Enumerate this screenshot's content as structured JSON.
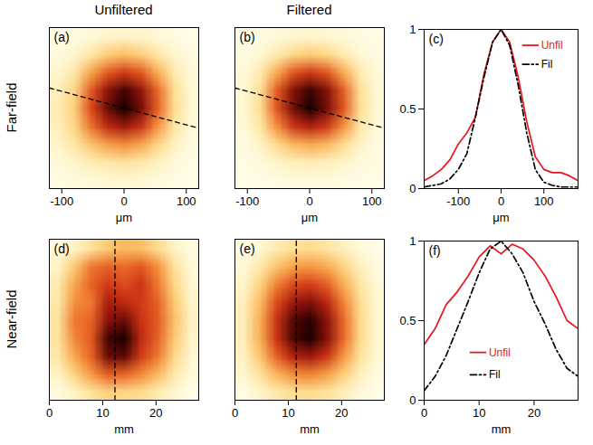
{
  "column_titles": [
    "Unfiltered",
    "Filtered"
  ],
  "row_titles": [
    "Far-field",
    "Near-field"
  ],
  "chart_data": [
    {
      "type": "heatmap",
      "panel_label": "(a)",
      "xlabel": "μm",
      "xlim": [
        -120,
        120
      ],
      "xticks": [
        -100,
        0,
        100
      ],
      "ylim": [
        -120,
        120
      ],
      "tick_labels": "x",
      "cells": [
        [
          0.06,
          0.07,
          0.09,
          0.12,
          0.13,
          0.12,
          0.09,
          0.07,
          0.05
        ],
        [
          0.08,
          0.12,
          0.22,
          0.33,
          0.38,
          0.33,
          0.22,
          0.12,
          0.07
        ],
        [
          0.12,
          0.22,
          0.45,
          0.62,
          0.7,
          0.62,
          0.42,
          0.2,
          0.09
        ],
        [
          0.16,
          0.3,
          0.62,
          0.85,
          0.95,
          0.84,
          0.58,
          0.26,
          0.1
        ],
        [
          0.18,
          0.33,
          0.66,
          0.9,
          1.0,
          0.88,
          0.6,
          0.27,
          0.1
        ],
        [
          0.17,
          0.3,
          0.56,
          0.75,
          0.82,
          0.72,
          0.48,
          0.22,
          0.09
        ],
        [
          0.13,
          0.22,
          0.36,
          0.46,
          0.5,
          0.44,
          0.3,
          0.15,
          0.07
        ],
        [
          0.09,
          0.13,
          0.18,
          0.22,
          0.24,
          0.21,
          0.15,
          0.09,
          0.06
        ],
        [
          0.06,
          0.08,
          0.09,
          0.1,
          0.11,
          0.1,
          0.08,
          0.06,
          0.05
        ]
      ],
      "profile_line": {
        "x": [
          -120,
          120
        ],
        "y": [
          30,
          -30
        ],
        "line_style": "dashed",
        "color": "#000000"
      }
    },
    {
      "type": "heatmap",
      "panel_label": "(b)",
      "xlabel": "μm",
      "xlim": [
        -120,
        120
      ],
      "xticks": [
        -100,
        0,
        100
      ],
      "ylim": [
        -120,
        120
      ],
      "tick_labels": "x",
      "cells": [
        [
          0.04,
          0.05,
          0.07,
          0.09,
          0.1,
          0.09,
          0.07,
          0.05,
          0.04
        ],
        [
          0.05,
          0.09,
          0.18,
          0.28,
          0.32,
          0.28,
          0.18,
          0.09,
          0.05
        ],
        [
          0.07,
          0.18,
          0.42,
          0.62,
          0.7,
          0.62,
          0.42,
          0.18,
          0.07
        ],
        [
          0.08,
          0.24,
          0.6,
          0.86,
          0.96,
          0.86,
          0.6,
          0.24,
          0.08
        ],
        [
          0.08,
          0.25,
          0.62,
          0.88,
          1.0,
          0.88,
          0.62,
          0.25,
          0.08
        ],
        [
          0.07,
          0.2,
          0.48,
          0.7,
          0.78,
          0.7,
          0.48,
          0.2,
          0.07
        ],
        [
          0.05,
          0.12,
          0.26,
          0.38,
          0.42,
          0.38,
          0.26,
          0.12,
          0.05
        ],
        [
          0.04,
          0.07,
          0.11,
          0.15,
          0.17,
          0.15,
          0.11,
          0.07,
          0.04
        ],
        [
          0.03,
          0.04,
          0.05,
          0.06,
          0.06,
          0.06,
          0.05,
          0.04,
          0.03
        ]
      ],
      "profile_line": {
        "x": [
          -120,
          120
        ],
        "y": [
          30,
          -30
        ],
        "line_style": "dashed",
        "color": "#000000"
      }
    },
    {
      "type": "line",
      "panel_label": "(c)",
      "xlabel": "μm",
      "xlim": [
        -180,
        180
      ],
      "xticks": [
        -100,
        0,
        100
      ],
      "ylim": [
        0,
        1
      ],
      "yticks": [
        0,
        0.5,
        1
      ],
      "legend": "upper right",
      "x": [
        -180,
        -160,
        -140,
        -120,
        -100,
        -80,
        -60,
        -40,
        -20,
        0,
        20,
        40,
        60,
        80,
        100,
        120,
        140,
        160,
        180
      ],
      "series": [
        {
          "name": "Unfil",
          "color": "#e8141c",
          "line_style": "solid",
          "values": [
            0.05,
            0.08,
            0.12,
            0.18,
            0.28,
            0.35,
            0.45,
            0.72,
            0.92,
            1.0,
            0.92,
            0.7,
            0.42,
            0.2,
            0.12,
            0.1,
            0.1,
            0.08,
            0.05
          ]
        },
        {
          "name": "Fil",
          "color": "#000000",
          "line_style": "dashdot",
          "values": [
            0.01,
            0.02,
            0.03,
            0.06,
            0.12,
            0.22,
            0.45,
            0.7,
            0.92,
            1.0,
            0.9,
            0.65,
            0.35,
            0.12,
            0.04,
            0.02,
            0.01,
            0.01,
            0.01
          ]
        }
      ]
    },
    {
      "type": "heatmap",
      "panel_label": "(d)",
      "xlabel": "mm",
      "xlim": [
        0,
        28
      ],
      "xticks": [
        0,
        10,
        20
      ],
      "ylim": [
        0,
        28
      ],
      "tick_labels": "x",
      "cells": [
        [
          0.1,
          0.15,
          0.25,
          0.35,
          0.4,
          0.38,
          0.28,
          0.15,
          0.08
        ],
        [
          0.15,
          0.35,
          0.55,
          0.6,
          0.58,
          0.62,
          0.5,
          0.25,
          0.1
        ],
        [
          0.2,
          0.45,
          0.6,
          0.7,
          0.65,
          0.72,
          0.55,
          0.3,
          0.12
        ],
        [
          0.22,
          0.5,
          0.55,
          0.8,
          0.75,
          0.7,
          0.6,
          0.35,
          0.14
        ],
        [
          0.25,
          0.55,
          0.6,
          0.85,
          0.9,
          0.72,
          0.62,
          0.38,
          0.15
        ],
        [
          0.25,
          0.52,
          0.62,
          0.95,
          1.0,
          0.75,
          0.6,
          0.35,
          0.14
        ],
        [
          0.22,
          0.45,
          0.6,
          0.9,
          0.92,
          0.7,
          0.55,
          0.3,
          0.12
        ],
        [
          0.15,
          0.32,
          0.48,
          0.62,
          0.6,
          0.52,
          0.4,
          0.22,
          0.1
        ],
        [
          0.08,
          0.15,
          0.25,
          0.32,
          0.3,
          0.28,
          0.2,
          0.12,
          0.06
        ]
      ],
      "profile_line": {
        "x": [
          12.3,
          12.3
        ],
        "y": [
          0,
          28
        ],
        "line_style": "dashed",
        "color": "#000000"
      }
    },
    {
      "type": "heatmap",
      "panel_label": "(e)",
      "xlabel": "mm",
      "xlim": [
        0,
        28
      ],
      "xticks": [
        0,
        10,
        20
      ],
      "ylim": [
        0,
        28
      ],
      "tick_labels": "x",
      "cells": [
        [
          0.05,
          0.1,
          0.18,
          0.24,
          0.26,
          0.22,
          0.15,
          0.08,
          0.04
        ],
        [
          0.08,
          0.2,
          0.35,
          0.45,
          0.47,
          0.42,
          0.3,
          0.15,
          0.06
        ],
        [
          0.12,
          0.3,
          0.52,
          0.65,
          0.68,
          0.6,
          0.42,
          0.22,
          0.08
        ],
        [
          0.15,
          0.38,
          0.65,
          0.82,
          0.86,
          0.76,
          0.52,
          0.26,
          0.1
        ],
        [
          0.16,
          0.42,
          0.72,
          0.93,
          0.98,
          0.85,
          0.58,
          0.28,
          0.1
        ],
        [
          0.16,
          0.42,
          0.72,
          0.94,
          1.0,
          0.86,
          0.58,
          0.28,
          0.1
        ],
        [
          0.14,
          0.35,
          0.6,
          0.78,
          0.82,
          0.72,
          0.48,
          0.24,
          0.09
        ],
        [
          0.1,
          0.24,
          0.4,
          0.5,
          0.52,
          0.46,
          0.32,
          0.16,
          0.06
        ],
        [
          0.05,
          0.12,
          0.2,
          0.25,
          0.26,
          0.23,
          0.16,
          0.08,
          0.04
        ]
      ],
      "profile_line": {
        "x": [
          11.5,
          11.5
        ],
        "y": [
          0,
          28
        ],
        "line_style": "dashed",
        "color": "#000000"
      }
    },
    {
      "type": "line",
      "panel_label": "(f)",
      "xlabel": "mm",
      "xlim": [
        0,
        28
      ],
      "xticks": [
        0,
        10,
        20
      ],
      "ylim": [
        0,
        1
      ],
      "yticks": [
        0,
        0.5,
        1
      ],
      "legend": "lower center",
      "x": [
        0,
        2,
        4,
        6,
        8,
        10,
        12,
        14,
        16,
        18,
        20,
        22,
        24,
        26,
        28
      ],
      "series": [
        {
          "name": "Unfil",
          "color": "#e8141c",
          "line_style": "solid",
          "values": [
            0.35,
            0.45,
            0.6,
            0.68,
            0.78,
            0.9,
            0.97,
            0.92,
            0.98,
            0.95,
            0.88,
            0.78,
            0.65,
            0.5,
            0.45
          ]
        },
        {
          "name": "Fil",
          "color": "#000000",
          "line_style": "dashdot",
          "values": [
            0.06,
            0.15,
            0.28,
            0.45,
            0.62,
            0.8,
            0.95,
            1.0,
            0.92,
            0.8,
            0.62,
            0.48,
            0.32,
            0.2,
            0.15
          ]
        }
      ]
    }
  ]
}
